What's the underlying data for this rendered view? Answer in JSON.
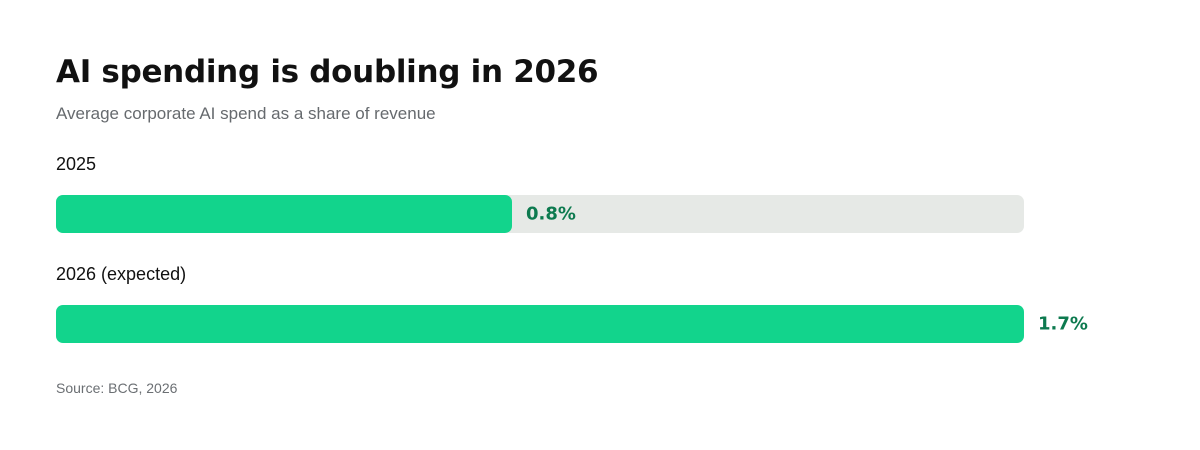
{
  "title": "AI spending is doubling in 2026",
  "subtitle": "Average corporate AI spend as a share of revenue",
  "source": "Source: BCG, 2026",
  "colors": {
    "bar": "#12d48c",
    "track": "#e6e9e6",
    "value_text": "#0d7a4f"
  },
  "chart_data": {
    "type": "bar",
    "orientation": "horizontal",
    "title": "AI spending is doubling in 2026",
    "subtitle": "Average corporate AI spend as a share of revenue",
    "categories": [
      "2025",
      "2026 (expected)"
    ],
    "values": [
      0.8,
      1.7
    ],
    "value_labels": [
      "0.8%",
      "1.7%"
    ],
    "unit": "%",
    "xlim": [
      0,
      1.7
    ],
    "grid": false
  }
}
